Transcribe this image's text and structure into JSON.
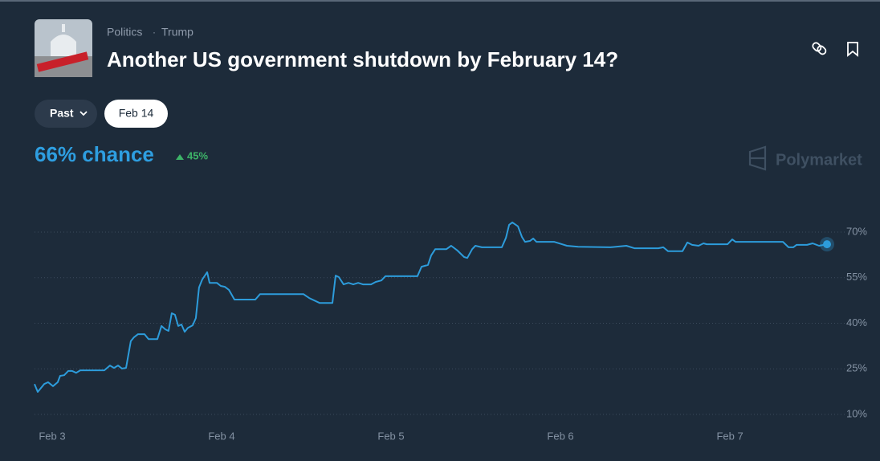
{
  "header": {
    "category": "Politics",
    "tag": "Trump",
    "title": "Another US government shutdown by February 14?"
  },
  "buttons": [
    "Past",
    "Feb 14"
  ],
  "headline": "66% chance",
  "change": "45%",
  "brand": "Polymarket",
  "chart_data": {
    "type": "line",
    "color": "#2d9cdb",
    "grid": true,
    "x": [
      -0.104,
      -0.085,
      -0.047,
      -0.024,
      0.005,
      0.033,
      0.047,
      0.071,
      0.095,
      0.118,
      0.142,
      0.166,
      0.308,
      0.341,
      0.365,
      0.389,
      0.412,
      0.436,
      0.464,
      0.483,
      0.507,
      0.545,
      0.569,
      0.621,
      0.645,
      0.668,
      0.687,
      0.706,
      0.725,
      0.744,
      0.763,
      0.782,
      0.801,
      0.829,
      0.848,
      0.867,
      0.886,
      0.915,
      0.929,
      0.972,
      0.995,
      1.019,
      1.043,
      1.076,
      1.199,
      1.227,
      1.483,
      1.517,
      1.578,
      1.654,
      1.673,
      1.692,
      1.72,
      1.749,
      1.777,
      1.806,
      1.834,
      1.882,
      1.91,
      1.943,
      1.967,
      2.156,
      2.18,
      2.218,
      2.237,
      2.261,
      2.327,
      2.355,
      2.393,
      2.431,
      2.45,
      2.479,
      2.498,
      2.536,
      2.654,
      2.678,
      2.697,
      2.716,
      2.749,
      2.773,
      2.791,
      2.82,
      2.839,
      2.858,
      2.962,
      3.009,
      3.038,
      3.104,
      3.294,
      3.389,
      3.436,
      3.578,
      3.607,
      3.635,
      3.72,
      3.749,
      3.777,
      3.815,
      3.844,
      3.863,
      3.986,
      4.014,
      4.033,
      4.313,
      4.346,
      4.374,
      4.393,
      4.455,
      4.488,
      4.526,
      4.573
    ],
    "values": [
      20.0,
      17.4,
      20.0,
      20.6,
      19.3,
      20.6,
      22.7,
      22.9,
      24.3,
      24.3,
      23.7,
      24.5,
      24.5,
      26.1,
      25.3,
      26.1,
      25.1,
      25.3,
      34.1,
      35.4,
      36.4,
      36.4,
      34.8,
      34.8,
      39.1,
      38,
      37.5,
      43.3,
      42.8,
      39.1,
      39.6,
      37.2,
      38.5,
      39.3,
      41.7,
      51.8,
      54.4,
      56.8,
      53.3,
      53.3,
      52.3,
      52,
      51,
      47.8,
      47.8,
      49.6,
      49.6,
      48.3,
      46.7,
      46.7,
      55.7,
      55.2,
      52.8,
      53.3,
      52.8,
      53.3,
      52.8,
      52.8,
      53.6,
      54.1,
      55.5,
      55.5,
      58.6,
      59.2,
      62.3,
      64.4,
      64.4,
      65.5,
      63.9,
      61.8,
      61.5,
      64.4,
      65.5,
      65,
      65,
      68.1,
      72.4,
      73.2,
      71.9,
      68.4,
      66.8,
      67.1,
      67.9,
      66.8,
      66.8,
      66,
      65.5,
      65.2,
      65,
      65.5,
      64.7,
      64.7,
      65,
      63.7,
      63.7,
      66.6,
      65.8,
      65.5,
      66.3,
      66,
      66,
      67.6,
      66.8,
      66.8,
      65,
      65,
      65.8,
      65.8,
      66.3,
      65.5,
      66
    ],
    "xlim": [
      -0.104,
      4.573
    ],
    "xticks": [
      {
        "value": 0,
        "label": "Feb 3"
      },
      {
        "value": 1,
        "label": "Feb 4"
      },
      {
        "value": 2,
        "label": "Feb 5"
      },
      {
        "value": 3,
        "label": "Feb 6"
      },
      {
        "value": 4,
        "label": "Feb 7"
      }
    ],
    "ylim": [
      10,
      70
    ],
    "yticks": [
      {
        "value": 10,
        "label": "10%"
      },
      {
        "value": 25,
        "label": "25%"
      },
      {
        "value": 40,
        "label": "40%"
      },
      {
        "value": 55,
        "label": "55%"
      },
      {
        "value": 70,
        "label": "70%"
      }
    ]
  }
}
